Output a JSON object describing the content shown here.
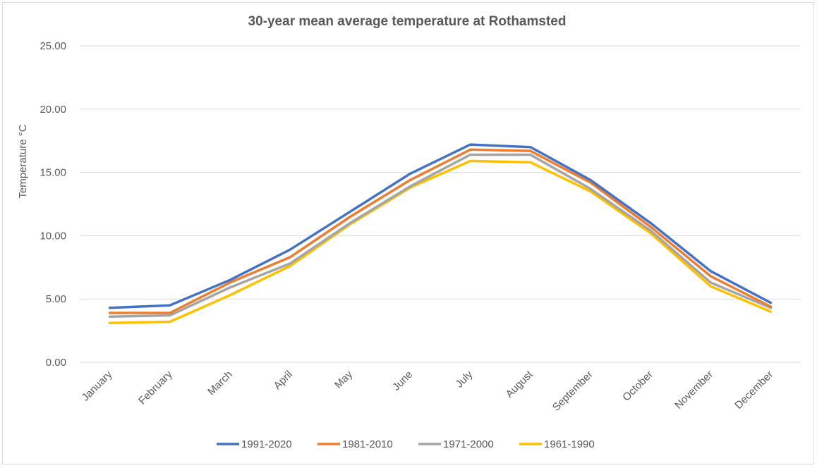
{
  "chart_data": {
    "type": "line",
    "title": "30-year mean average temperature at Rothamsted",
    "xlabel": "",
    "ylabel": "Temperature °C",
    "categories": [
      "January",
      "February",
      "March",
      "April",
      "May",
      "June",
      "July",
      "August",
      "September",
      "October",
      "November",
      "December"
    ],
    "y_ticks": [
      "0.00",
      "5.00",
      "10.00",
      "15.00",
      "20.00",
      "25.00"
    ],
    "ylim": [
      0,
      25
    ],
    "grid": "horizontal",
    "legend_position": "bottom",
    "series": [
      {
        "name": "1991-2020",
        "color": "#4472C4",
        "values": [
          4.3,
          4.5,
          6.5,
          8.9,
          11.9,
          14.9,
          17.2,
          17.0,
          14.4,
          11.0,
          7.2,
          4.7
        ]
      },
      {
        "name": "1981-2010",
        "color": "#ED7D31",
        "values": [
          3.9,
          3.9,
          6.3,
          8.3,
          11.5,
          14.4,
          16.8,
          16.7,
          14.2,
          10.7,
          6.8,
          4.4
        ]
      },
      {
        "name": "1971-2000",
        "color": "#A5A5A5",
        "values": [
          3.6,
          3.7,
          5.9,
          7.8,
          11.0,
          13.9,
          16.4,
          16.4,
          13.7,
          10.4,
          6.3,
          4.3
        ]
      },
      {
        "name": "1961-1990",
        "color": "#FFC000",
        "values": [
          3.1,
          3.2,
          5.3,
          7.6,
          10.9,
          13.8,
          15.9,
          15.8,
          13.5,
          10.2,
          6.0,
          4.0
        ]
      }
    ]
  }
}
